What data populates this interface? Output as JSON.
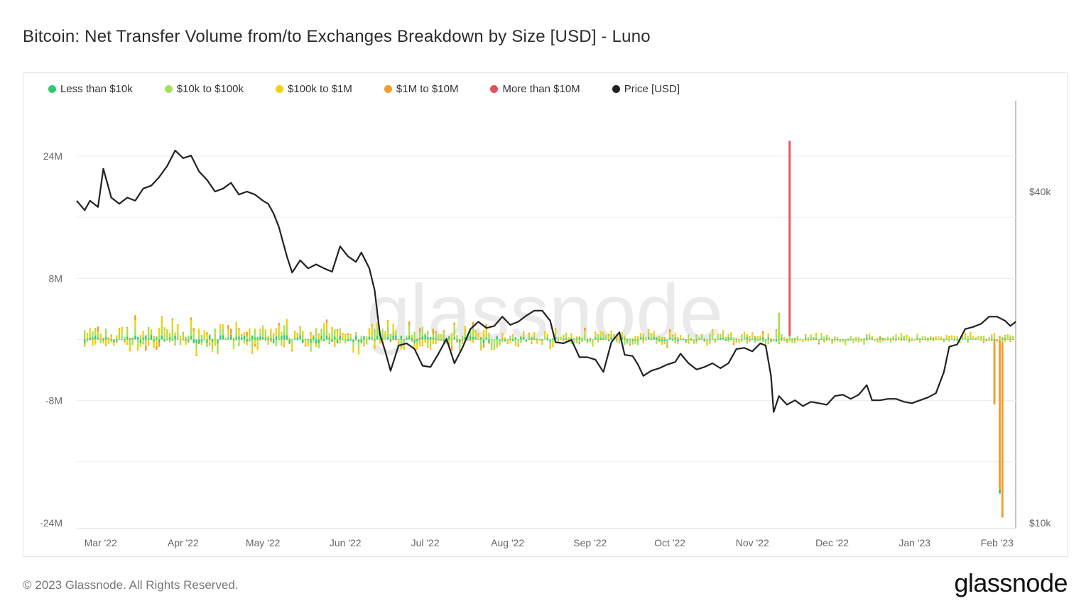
{
  "title": "Bitcoin: Net Transfer Volume from/to Exchanges Breakdown by Size [USD] - Luno",
  "legend": [
    {
      "label": "Less than $10k",
      "color": "#2ecc71"
    },
    {
      "label": "$10k to $100k",
      "color": "#a4e25b"
    },
    {
      "label": "$100k to $1M",
      "color": "#f5d10b"
    },
    {
      "label": "$1M to $10M",
      "color": "#f39c2b"
    },
    {
      "label": "More than $10M",
      "color": "#e8505b"
    },
    {
      "label": "Price [USD]",
      "color": "#222222"
    }
  ],
  "footer": {
    "copyright": "© 2023 Glassnode. All Rights Reserved.",
    "logo": "glassnode"
  },
  "watermark": "glassnode",
  "chart_data": {
    "type": "bar",
    "title": "Bitcoin: Net Transfer Volume from/to Exchanges Breakdown by Size [USD] - Luno",
    "x_tick_labels": [
      "Mar '22",
      "Apr '22",
      "May '22",
      "Jun '22",
      "Jul '22",
      "Aug '22",
      "Sep '22",
      "Oct '22",
      "Nov '22",
      "Dec '22",
      "Jan '23",
      "Feb '23"
    ],
    "x_range": [
      "2022-02-20",
      "2023-02-08"
    ],
    "left_axis": {
      "ticks": [
        24000000,
        8000000,
        -8000000,
        -24000000
      ],
      "tick_labels": [
        "24M",
        "8M",
        "-8M",
        "-24M"
      ],
      "ylim": [
        -24000000,
        28000000
      ]
    },
    "right_axis": {
      "scale": "log",
      "tick_labels": [
        "$40k",
        "$10k"
      ],
      "ticks": [
        40000,
        10000
      ]
    },
    "grid": true,
    "legend_placement": "top-left",
    "series": [
      {
        "name": "Less than $10k",
        "color": "#2ecc71",
        "stack": true
      },
      {
        "name": "$10k to $100k",
        "color": "#a4e25b",
        "stack": true
      },
      {
        "name": "$100k to $1M",
        "color": "#f5d10b",
        "stack": true
      },
      {
        "name": "$1M to $10M",
        "color": "#f39c2b",
        "stack": true
      },
      {
        "name": "More than $10M",
        "color": "#e8505b",
        "stack": true
      }
    ],
    "notable_bars": [
      {
        "date": "2022-11-15",
        "series": "More than $10M",
        "value": 25500000
      },
      {
        "date": "2022-11-11",
        "series": "$10k to $100k",
        "value": 3500000
      },
      {
        "date": "2023-01-31",
        "series": "$1M to $10M",
        "value": -8500000
      },
      {
        "date": "2023-02-02",
        "series": "$1M to $10M",
        "value": -19500000
      },
      {
        "date": "2023-02-02",
        "series": "Less than $10k",
        "value": -500000
      },
      {
        "date": "2023-02-03",
        "series": "$1M to $10M",
        "value": -23000000
      }
    ],
    "price_series": {
      "name": "Price [USD]",
      "color": "#222222",
      "points": [
        [
          "2022-02-20",
          38500
        ],
        [
          "2022-02-23",
          37000
        ],
        [
          "2022-02-25",
          38500
        ],
        [
          "2022-02-28",
          37500
        ],
        [
          "2022-03-02",
          44000
        ],
        [
          "2022-03-05",
          39000
        ],
        [
          "2022-03-08",
          38000
        ],
        [
          "2022-03-11",
          39000
        ],
        [
          "2022-03-14",
          38500
        ],
        [
          "2022-03-17",
          40500
        ],
        [
          "2022-03-20",
          41000
        ],
        [
          "2022-03-23",
          42500
        ],
        [
          "2022-03-26",
          44500
        ],
        [
          "2022-03-29",
          47500
        ],
        [
          "2022-04-01",
          46000
        ],
        [
          "2022-04-04",
          46500
        ],
        [
          "2022-04-07",
          43500
        ],
        [
          "2022-04-10",
          42000
        ],
        [
          "2022-04-13",
          40000
        ],
        [
          "2022-04-16",
          40500
        ],
        [
          "2022-04-19",
          41500
        ],
        [
          "2022-04-22",
          39500
        ],
        [
          "2022-04-25",
          40000
        ],
        [
          "2022-04-28",
          39500
        ],
        [
          "2022-05-01",
          38500
        ],
        [
          "2022-05-03",
          38000
        ],
        [
          "2022-05-05",
          36500
        ],
        [
          "2022-05-07",
          34500
        ],
        [
          "2022-05-10",
          30500
        ],
        [
          "2022-05-12",
          28500
        ],
        [
          "2022-05-15",
          30000
        ],
        [
          "2022-05-18",
          29000
        ],
        [
          "2022-05-21",
          29500
        ],
        [
          "2022-05-24",
          29000
        ],
        [
          "2022-05-27",
          28600
        ],
        [
          "2022-05-30",
          31800
        ],
        [
          "2022-06-02",
          30500
        ],
        [
          "2022-06-05",
          29800
        ],
        [
          "2022-06-07",
          31000
        ],
        [
          "2022-06-10",
          29000
        ],
        [
          "2022-06-12",
          26500
        ],
        [
          "2022-06-14",
          22000
        ],
        [
          "2022-06-16",
          20500
        ],
        [
          "2022-06-18",
          18900
        ],
        [
          "2022-06-21",
          21000
        ],
        [
          "2022-06-24",
          21200
        ],
        [
          "2022-06-27",
          20700
        ],
        [
          "2022-06-30",
          19300
        ],
        [
          "2022-07-03",
          19200
        ],
        [
          "2022-07-06",
          20300
        ],
        [
          "2022-07-09",
          21600
        ],
        [
          "2022-07-12",
          19500
        ],
        [
          "2022-07-15",
          20800
        ],
        [
          "2022-07-18",
          22500
        ],
        [
          "2022-07-21",
          23200
        ],
        [
          "2022-07-24",
          22600
        ],
        [
          "2022-07-27",
          22800
        ],
        [
          "2022-07-30",
          23700
        ],
        [
          "2022-08-02",
          22900
        ],
        [
          "2022-08-05",
          23200
        ],
        [
          "2022-08-08",
          23800
        ],
        [
          "2022-08-11",
          24300
        ],
        [
          "2022-08-14",
          24300
        ],
        [
          "2022-08-17",
          23300
        ],
        [
          "2022-08-19",
          21300
        ],
        [
          "2022-08-22",
          21200
        ],
        [
          "2022-08-25",
          21500
        ],
        [
          "2022-08-28",
          20000
        ],
        [
          "2022-08-31",
          20000
        ],
        [
          "2022-09-03",
          19800
        ],
        [
          "2022-09-06",
          18800
        ],
        [
          "2022-09-09",
          21300
        ],
        [
          "2022-09-12",
          22200
        ],
        [
          "2022-09-14",
          20200
        ],
        [
          "2022-09-17",
          20100
        ],
        [
          "2022-09-19",
          19400
        ],
        [
          "2022-09-21",
          18500
        ],
        [
          "2022-09-24",
          18900
        ],
        [
          "2022-09-27",
          19100
        ],
        [
          "2022-09-30",
          19400
        ],
        [
          "2022-10-03",
          19600
        ],
        [
          "2022-10-05",
          20300
        ],
        [
          "2022-10-08",
          19500
        ],
        [
          "2022-10-11",
          19000
        ],
        [
          "2022-10-14",
          19200
        ],
        [
          "2022-10-17",
          19500
        ],
        [
          "2022-10-20",
          19100
        ],
        [
          "2022-10-23",
          19500
        ],
        [
          "2022-10-26",
          20700
        ],
        [
          "2022-10-29",
          20800
        ],
        [
          "2022-11-01",
          20500
        ],
        [
          "2022-11-04",
          21200
        ],
        [
          "2022-11-06",
          21000
        ],
        [
          "2022-11-08",
          18500
        ],
        [
          "2022-11-09",
          15900
        ],
        [
          "2022-11-11",
          17000
        ],
        [
          "2022-11-14",
          16400
        ],
        [
          "2022-11-17",
          16700
        ],
        [
          "2022-11-20",
          16300
        ],
        [
          "2022-11-23",
          16600
        ],
        [
          "2022-11-26",
          16500
        ],
        [
          "2022-11-29",
          16400
        ],
        [
          "2022-12-02",
          17000
        ],
        [
          "2022-12-05",
          17100
        ],
        [
          "2022-12-08",
          16800
        ],
        [
          "2022-12-11",
          17100
        ],
        [
          "2022-12-14",
          17800
        ],
        [
          "2022-12-16",
          16700
        ],
        [
          "2022-12-19",
          16700
        ],
        [
          "2022-12-22",
          16800
        ],
        [
          "2022-12-25",
          16800
        ],
        [
          "2022-12-28",
          16600
        ],
        [
          "2022-12-31",
          16500
        ],
        [
          "2023-01-03",
          16700
        ],
        [
          "2023-01-06",
          16900
        ],
        [
          "2023-01-09",
          17200
        ],
        [
          "2023-01-12",
          18800
        ],
        [
          "2023-01-14",
          20900
        ],
        [
          "2023-01-17",
          21100
        ],
        [
          "2023-01-20",
          22500
        ],
        [
          "2023-01-23",
          22700
        ],
        [
          "2023-01-26",
          23000
        ],
        [
          "2023-01-29",
          23700
        ],
        [
          "2023-02-01",
          23700
        ],
        [
          "2023-02-04",
          23300
        ],
        [
          "2023-02-06",
          22800
        ],
        [
          "2023-02-08",
          23200
        ]
      ]
    }
  }
}
